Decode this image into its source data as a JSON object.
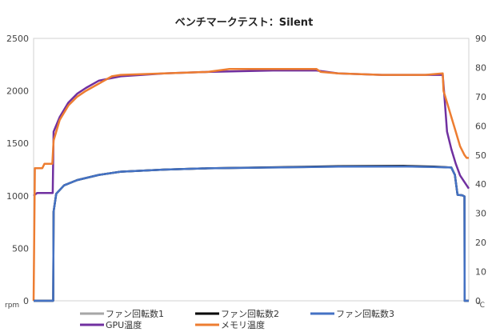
{
  "chart_data": {
    "type": "line",
    "title": "ベンチマークテスト：Silent",
    "y_left": {
      "unit": "rpm",
      "min": 0,
      "max": 2500,
      "ticks": [
        0,
        500,
        1000,
        1500,
        2000,
        2500
      ]
    },
    "y_right": {
      "unit": "℃",
      "min": 0,
      "max": 90,
      "ticks": [
        0,
        10,
        20,
        30,
        40,
        50,
        60,
        70,
        80,
        90
      ]
    },
    "grid": "none",
    "legend_position": "bottom",
    "series": [
      {
        "name": "ファン回転数1",
        "axis": "left",
        "color": "#a6a6a6",
        "points": [
          [
            0,
            0
          ],
          [
            4.5,
            0
          ],
          [
            4.6,
            850
          ],
          [
            5.2,
            1020
          ],
          [
            7,
            1100
          ],
          [
            10,
            1150
          ],
          [
            15,
            1200
          ],
          [
            20,
            1230
          ],
          [
            30,
            1250
          ],
          [
            40,
            1262
          ],
          [
            55,
            1270
          ],
          [
            70,
            1278
          ],
          [
            85,
            1280
          ],
          [
            92,
            1275
          ],
          [
            96,
            1270
          ],
          [
            96.8,
            1200
          ],
          [
            97.4,
            1010
          ],
          [
            98.5,
            1005
          ],
          [
            99,
            995
          ],
          [
            99.05,
            0
          ],
          [
            100,
            0
          ]
        ]
      },
      {
        "name": "ファン回転数2",
        "axis": "left",
        "color": "#000000",
        "points": [
          [
            0,
            0
          ],
          [
            4.5,
            0
          ],
          [
            4.6,
            850
          ],
          [
            5.2,
            1020
          ],
          [
            7,
            1100
          ],
          [
            10,
            1150
          ],
          [
            15,
            1200
          ],
          [
            20,
            1230
          ],
          [
            30,
            1250
          ],
          [
            40,
            1262
          ],
          [
            55,
            1272
          ],
          [
            70,
            1282
          ],
          [
            85,
            1285
          ],
          [
            92,
            1278
          ],
          [
            96,
            1270
          ],
          [
            96.8,
            1200
          ],
          [
            97.4,
            1010
          ],
          [
            98.5,
            1005
          ],
          [
            99,
            995
          ],
          [
            99.05,
            0
          ],
          [
            100,
            0
          ]
        ]
      },
      {
        "name": "ファン回転数3",
        "axis": "left",
        "color": "#4472c4",
        "points": [
          [
            0,
            0
          ],
          [
            4.5,
            0
          ],
          [
            4.6,
            850
          ],
          [
            5.2,
            1020
          ],
          [
            7,
            1100
          ],
          [
            10,
            1150
          ],
          [
            15,
            1200
          ],
          [
            20,
            1230
          ],
          [
            30,
            1250
          ],
          [
            40,
            1262
          ],
          [
            55,
            1270
          ],
          [
            70,
            1278
          ],
          [
            85,
            1280
          ],
          [
            92,
            1275
          ],
          [
            96,
            1270
          ],
          [
            96.8,
            1200
          ],
          [
            97.4,
            1010
          ],
          [
            98.5,
            1005
          ],
          [
            99,
            995
          ],
          [
            99.05,
            0
          ],
          [
            100,
            0
          ]
        ]
      },
      {
        "name": "GPU温度",
        "axis": "right",
        "color": "#7030a0",
        "points": [
          [
            0,
            36
          ],
          [
            0.8,
            37
          ],
          [
            4.4,
            37
          ],
          [
            4.6,
            58
          ],
          [
            6,
            63
          ],
          [
            8,
            68
          ],
          [
            10,
            71
          ],
          [
            12,
            73
          ],
          [
            15,
            75.5
          ],
          [
            20,
            77
          ],
          [
            30,
            78
          ],
          [
            40,
            78.5
          ],
          [
            55,
            79
          ],
          [
            65,
            79
          ],
          [
            70,
            78
          ],
          [
            80,
            77.5
          ],
          [
            90,
            77.5
          ],
          [
            94,
            77.5
          ],
          [
            94.3,
            72
          ],
          [
            95,
            58
          ],
          [
            96,
            52
          ],
          [
            97,
            47
          ],
          [
            98,
            43
          ],
          [
            100,
            38.5
          ]
        ]
      },
      {
        "name": "メモリ温度",
        "axis": "right",
        "color": "#ed7d31",
        "points": [
          [
            0,
            0
          ],
          [
            0.3,
            45.5
          ],
          [
            2,
            45.5
          ],
          [
            2.5,
            47
          ],
          [
            4.3,
            47
          ],
          [
            4.6,
            55
          ],
          [
            6,
            62
          ],
          [
            8,
            67
          ],
          [
            10,
            70
          ],
          [
            12,
            72
          ],
          [
            15,
            74.5
          ],
          [
            18,
            77
          ],
          [
            20,
            77.5
          ],
          [
            30,
            78
          ],
          [
            40,
            78.5
          ],
          [
            45,
            79.5
          ],
          [
            55,
            79.5
          ],
          [
            65,
            79.5
          ],
          [
            66,
            78.5
          ],
          [
            70,
            78
          ],
          [
            80,
            77.5
          ],
          [
            90,
            77.5
          ],
          [
            94,
            78
          ],
          [
            94.2,
            72
          ],
          [
            95,
            68
          ],
          [
            96,
            63
          ],
          [
            97,
            58
          ],
          [
            98,
            53
          ],
          [
            99,
            50
          ],
          [
            99.5,
            49
          ],
          [
            100,
            49
          ]
        ]
      }
    ]
  }
}
